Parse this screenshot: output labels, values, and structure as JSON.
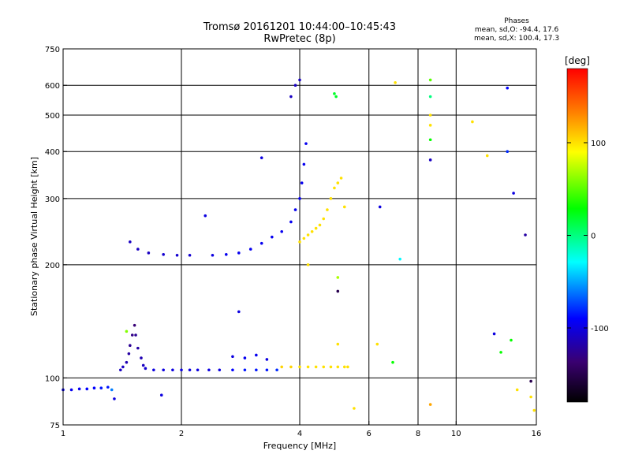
{
  "header": {
    "title_line1": "Tromsø 20161201 10:44:00–10:45:43",
    "title_line2": "RwPretec (8p)",
    "phase_title": "Phases",
    "phase_line1": "mean, sd,O: -94.4, 17.6",
    "phase_line2": "mean, sd,X: 100.4, 17.3"
  },
  "colorbar": {
    "label": "[deg]",
    "min": -180,
    "max": 180,
    "ticks": [
      {
        "value": 100,
        "label": "100"
      },
      {
        "value": 0,
        "label": "0"
      },
      {
        "value": -100,
        "label": "-100"
      }
    ]
  },
  "chart_data": {
    "type": "scatter",
    "xlabel": "Frequency [MHz]",
    "ylabel": "Stationary phase Virtual Height [km]",
    "xscale": "log",
    "yscale": "log",
    "xlim": [
      1,
      16
    ],
    "ylim": [
      75,
      750
    ],
    "xticks": [
      {
        "value": 1,
        "label": "1"
      },
      {
        "value": 2,
        "label": "2"
      },
      {
        "value": 4,
        "label": "4"
      },
      {
        "value": 6,
        "label": "6"
      },
      {
        "value": 8,
        "label": "8"
      },
      {
        "value": 10,
        "label": "10"
      },
      {
        "value": 16,
        "label": "16"
      }
    ],
    "yticks": [
      {
        "value": 75,
        "label": "75"
      },
      {
        "value": 100,
        "label": "100"
      },
      {
        "value": 200,
        "label": "200"
      },
      {
        "value": 300,
        "label": "300"
      },
      {
        "value": 400,
        "label": "400"
      },
      {
        "value": 500,
        "label": "500"
      },
      {
        "value": 600,
        "label": "600"
      },
      {
        "value": 750,
        "label": "750"
      }
    ],
    "vgrid": [
      2,
      4,
      6,
      8,
      10,
      16
    ],
    "hgrid": [
      100,
      200,
      300,
      400,
      500,
      600
    ],
    "grid": true,
    "color_by": "phase [deg]",
    "points": [
      [
        1.0,
        93,
        -95
      ],
      [
        1.05,
        93,
        -95
      ],
      [
        1.1,
        93.5,
        -95
      ],
      [
        1.15,
        93.5,
        -90
      ],
      [
        1.2,
        94,
        -90
      ],
      [
        1.25,
        94,
        -85
      ],
      [
        1.3,
        94.5,
        -85
      ],
      [
        1.33,
        93,
        -60
      ],
      [
        1.4,
        105,
        -110
      ],
      [
        1.42,
        107,
        -110
      ],
      [
        1.45,
        110,
        -115
      ],
      [
        1.47,
        116,
        -120
      ],
      [
        1.48,
        122,
        -125
      ],
      [
        1.5,
        130,
        -130
      ],
      [
        1.52,
        138,
        -135
      ],
      [
        1.53,
        130,
        -125
      ],
      [
        1.55,
        120,
        -120
      ],
      [
        1.58,
        113,
        -115
      ],
      [
        1.6,
        108,
        -110
      ],
      [
        1.62,
        106,
        -105
      ],
      [
        1.7,
        105,
        -100
      ],
      [
        1.8,
        105,
        -100
      ],
      [
        1.9,
        105,
        -100
      ],
      [
        2.0,
        105,
        -100
      ],
      [
        2.1,
        105,
        -100
      ],
      [
        2.2,
        105,
        -100
      ],
      [
        2.35,
        105,
        -100
      ],
      [
        2.5,
        105,
        -100
      ],
      [
        2.7,
        105,
        -90
      ],
      [
        2.9,
        105,
        -85
      ],
      [
        3.1,
        105,
        -85
      ],
      [
        3.3,
        105,
        -85
      ],
      [
        3.5,
        105,
        -80
      ],
      [
        3.6,
        107,
        105
      ],
      [
        3.8,
        107,
        105
      ],
      [
        4.0,
        107,
        100
      ],
      [
        4.2,
        107,
        100
      ],
      [
        4.4,
        107,
        100
      ],
      [
        4.6,
        107,
        100
      ],
      [
        4.8,
        107,
        100
      ],
      [
        5.0,
        107,
        100
      ],
      [
        5.2,
        107,
        100
      ],
      [
        5.3,
        107,
        100
      ],
      [
        2.7,
        114,
        -100
      ],
      [
        2.9,
        113,
        -95
      ],
      [
        3.1,
        115,
        -95
      ],
      [
        3.3,
        112,
        -100
      ],
      [
        1.48,
        230,
        -110
      ],
      [
        1.55,
        220,
        -110
      ],
      [
        1.65,
        215,
        -110
      ],
      [
        1.8,
        213,
        -105
      ],
      [
        1.95,
        212,
        -105
      ],
      [
        2.1,
        212,
        -105
      ],
      [
        2.4,
        212,
        -100
      ],
      [
        2.6,
        213,
        -95
      ],
      [
        2.8,
        215,
        -95
      ],
      [
        3.0,
        220,
        -95
      ],
      [
        3.2,
        228,
        -95
      ],
      [
        3.4,
        237,
        -95
      ],
      [
        3.6,
        245,
        -95
      ],
      [
        3.8,
        260,
        -95
      ],
      [
        3.9,
        280,
        -95
      ],
      [
        4.0,
        300,
        -95
      ],
      [
        4.05,
        330,
        -95
      ],
      [
        4.1,
        370,
        -95
      ],
      [
        4.15,
        420,
        -95
      ],
      [
        4.0,
        230,
        100
      ],
      [
        4.1,
        235,
        100
      ],
      [
        4.2,
        240,
        100
      ],
      [
        4.3,
        245,
        100
      ],
      [
        4.4,
        250,
        100
      ],
      [
        4.5,
        255,
        100
      ],
      [
        4.6,
        265,
        100
      ],
      [
        4.7,
        280,
        100
      ],
      [
        4.8,
        300,
        100
      ],
      [
        4.9,
        320,
        100
      ],
      [
        5.0,
        330,
        100
      ],
      [
        5.1,
        340,
        100
      ],
      [
        3.8,
        560,
        -110
      ],
      [
        3.9,
        600,
        -110
      ],
      [
        4.0,
        620,
        -110
      ],
      [
        4.9,
        570,
        20
      ],
      [
        4.95,
        560,
        20
      ],
      [
        7.0,
        610,
        100
      ],
      [
        8.6,
        620,
        50
      ],
      [
        8.6,
        560,
        0
      ],
      [
        8.6,
        500,
        100
      ],
      [
        8.6,
        470,
        100
      ],
      [
        8.6,
        430,
        30
      ],
      [
        8.6,
        380,
        -110
      ],
      [
        11,
        480,
        100
      ],
      [
        12,
        390,
        100
      ],
      [
        13.5,
        590,
        -90
      ],
      [
        13.5,
        400,
        -80
      ],
      [
        14,
        310,
        -100
      ],
      [
        15,
        240,
        -120
      ],
      [
        3.2,
        385,
        -100
      ],
      [
        2.3,
        270,
        -100
      ],
      [
        5.2,
        285,
        100
      ],
      [
        6.4,
        285,
        -100
      ],
      [
        7.2,
        207,
        -30
      ],
      [
        4.2,
        200,
        100
      ],
      [
        5.0,
        185,
        70
      ],
      [
        5.0,
        170,
        -150
      ],
      [
        2.8,
        150,
        -100
      ],
      [
        1.78,
        90,
        -100
      ],
      [
        1.35,
        88,
        -100
      ],
      [
        1.45,
        133,
        60
      ],
      [
        5.0,
        123,
        100
      ],
      [
        6.9,
        110,
        30
      ],
      [
        12.5,
        131,
        -100
      ],
      [
        13,
        117,
        30
      ],
      [
        13.8,
        126,
        30
      ],
      [
        15.5,
        98,
        -150
      ],
      [
        14.3,
        93,
        100
      ],
      [
        15.5,
        89,
        100
      ],
      [
        15.8,
        82,
        100
      ],
      [
        8.6,
        85,
        120
      ],
      [
        5.5,
        83,
        100
      ],
      [
        6.3,
        123,
        100
      ]
    ]
  }
}
